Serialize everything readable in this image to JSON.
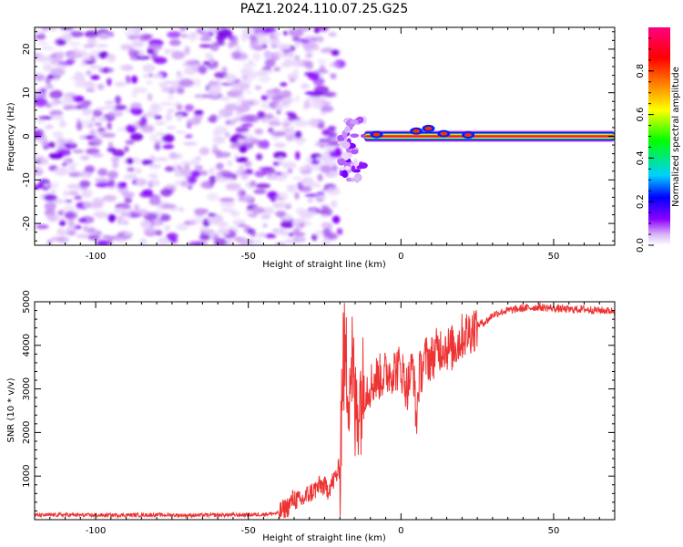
{
  "figure_title": "PAZ1.2024.110.07.25.G25",
  "chart_data": [
    {
      "type": "heatmap",
      "title": "PAZ1.2024.110.07.25.G25",
      "xlabel": "Height of straight line (km)",
      "ylabel": "Frequency (Hz)",
      "xlim": [
        -120,
        70
      ],
      "ylim": [
        -25,
        25
      ],
      "x_ticks": [
        -100,
        -50,
        0,
        50
      ],
      "y_ticks": [
        -20,
        -10,
        0,
        10,
        20
      ],
      "colorbar": {
        "label": "Normalized spectral amplitude",
        "range": [
          0,
          1
        ],
        "ticks": [
          0.0,
          0.2,
          0.4,
          0.6,
          0.8
        ],
        "colormap": [
          "#ffffff",
          "#d8b4f8",
          "#8a00ff",
          "#0000ff",
          "#00d0ff",
          "#00ff00",
          "#ffff00",
          "#ff8000",
          "#ff0000",
          "#ff0080"
        ]
      },
      "regions": [
        {
          "x_range": [
            -120,
            -20
          ],
          "y_range": [
            -25,
            25
          ],
          "amplitude_range": [
            0.0,
            0.1
          ],
          "description": "noise"
        },
        {
          "x_range": [
            -20,
            -12
          ],
          "y_range": [
            -10,
            4
          ],
          "amplitude_range": [
            0.05,
            0.25
          ]
        },
        {
          "x_range": [
            -12,
            70
          ],
          "y_center": 0,
          "amplitude_range": [
            0.8,
            1.0
          ]
        }
      ]
    },
    {
      "type": "line",
      "xlabel": "Height of straight line (km)",
      "ylabel": "SNR (10 * v/v)",
      "xlim": [
        -120,
        70
      ],
      "ylim": [
        0,
        5000
      ],
      "x_ticks": [
        -100,
        -50,
        0,
        50
      ],
      "y_ticks": [
        1000,
        2000,
        3000,
        4000,
        5000
      ],
      "line_color": "#ee3333",
      "series": [
        {
          "x": [
            -120,
            -110,
            -100,
            -90,
            -80,
            -70,
            -60,
            -50,
            -45,
            -40,
            -37,
            -35,
            -33,
            -30,
            -28,
            -26,
            -24,
            -22,
            -20,
            -19,
            -18,
            -17,
            -16,
            -15,
            -14,
            -12,
            -10,
            -8,
            -6,
            -4,
            -2,
            0,
            2,
            4,
            5,
            6,
            8,
            10,
            12,
            14,
            16,
            18,
            20,
            22,
            24,
            26,
            28,
            30,
            32,
            35,
            40,
            45,
            50,
            55,
            60,
            65,
            70
          ],
          "y": [
            100,
            110,
            100,
            105,
            110,
            100,
            105,
            110,
            120,
            150,
            300,
            500,
            400,
            600,
            700,
            800,
            700,
            900,
            1200,
            3800,
            3500,
            3200,
            3700,
            2300,
            2800,
            3000,
            3100,
            3250,
            3300,
            3400,
            3450,
            3500,
            3000,
            3600,
            2200,
            3300,
            3700,
            3700,
            3900,
            4000,
            3900,
            4000,
            4200,
            4300,
            4400,
            4500,
            4550,
            4700,
            4750,
            4800,
            4850,
            4880,
            4850,
            4820,
            4830,
            4800,
            4790
          ]
        }
      ]
    }
  ]
}
